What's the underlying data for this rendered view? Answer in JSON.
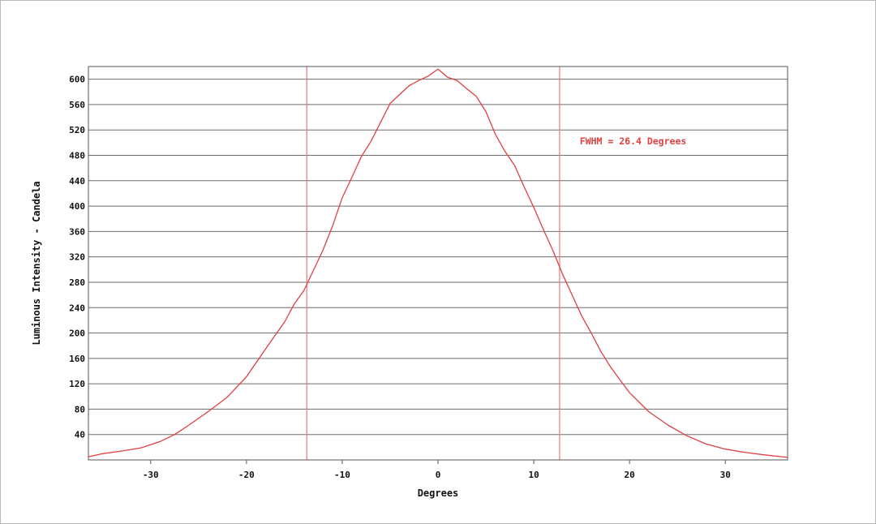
{
  "chart_data": {
    "type": "line",
    "title": "",
    "xlabel": "Degrees",
    "ylabel": "Luminous Intensity - Candela",
    "xlim": [
      -36.5,
      36.5
    ],
    "ylim": [
      0,
      620
    ],
    "x_ticks": [
      -30,
      -20,
      -10,
      0,
      10,
      20,
      30
    ],
    "x_tick_labels": [
      "-30",
      "-20",
      "-10",
      "0",
      "10",
      "20",
      "30"
    ],
    "y_ticks": [
      40,
      80,
      120,
      160,
      200,
      240,
      280,
      320,
      360,
      400,
      440,
      480,
      520,
      560,
      600
    ],
    "y_tick_labels": [
      "40",
      "80",
      "120",
      "160",
      "200",
      "240",
      "280",
      "320",
      "360",
      "400",
      "440",
      "480",
      "520",
      "560",
      "600"
    ],
    "grid": "horizontal",
    "line_color": "#e04040",
    "marker_color": "#e87a7a",
    "annotation": "FWHM = 26.4 Degrees",
    "annotation_at": {
      "x": 14.8,
      "y": 497
    },
    "fwhm_markers": [
      -13.7,
      12.7
    ],
    "series": [
      {
        "x": [
          -36.5,
          -35,
          -33,
          -31,
          -29,
          -27.5,
          -26,
          -24,
          -22,
          -20,
          -18,
          -16,
          -15,
          -14,
          -13,
          -12,
          -11,
          -10,
          -9,
          -8,
          -7,
          -6,
          -5,
          -4,
          -3,
          -2,
          -1,
          0,
          1,
          2,
          3,
          4,
          5,
          6,
          7,
          8,
          9,
          10,
          11,
          12,
          13,
          14,
          15,
          16,
          17,
          18,
          19,
          20,
          22,
          24,
          26,
          28,
          30,
          32,
          34,
          36.5
        ],
        "y": [
          5,
          10,
          14,
          19,
          29,
          40,
          55,
          76,
          99,
          131,
          175,
          218,
          246,
          267,
          299,
          331,
          369,
          413,
          445,
          478,
          502,
          532,
          562,
          576,
          590,
          598,
          605,
          616,
          603,
          598,
          585,
          573,
          549,
          513,
          486,
          464,
          430,
          398,
          363,
          330,
          293,
          260,
          227,
          200,
          171,
          147,
          126,
          106,
          76,
          55,
          38,
          25,
          17,
          12,
          8,
          4
        ]
      }
    ]
  }
}
